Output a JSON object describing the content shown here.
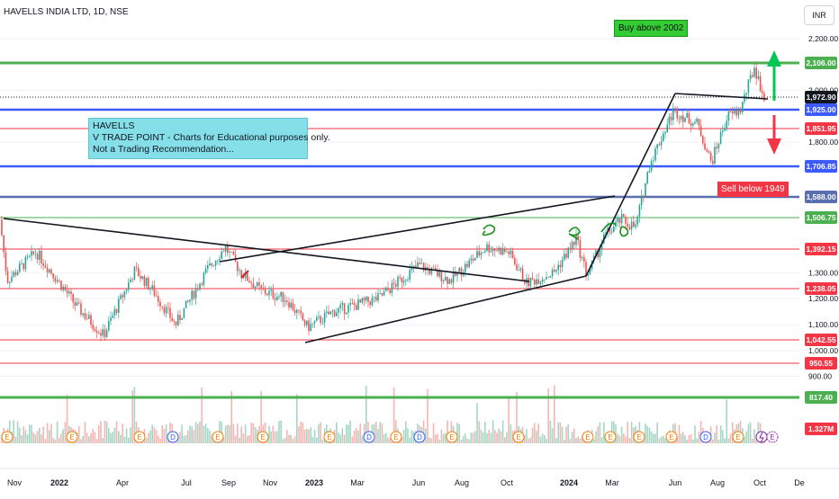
{
  "header": {
    "title": "HAVELLS INDIA LTD, 1D, NSE",
    "currency": "INR"
  },
  "annotations": {
    "note_lines": [
      "HAVELLS",
      "V TRADE POINT - Charts for Educational purposes only.",
      "Not a Trading Recommendation..."
    ],
    "buy_label": "Buy above 2002",
    "sell_label": "Sell below 1949"
  },
  "chart_data": {
    "type": "candlestick",
    "x_tick_labels": [
      "Nov",
      "2022",
      "Apr",
      "Jul",
      "Sep",
      "Nov",
      "2023",
      "Mar",
      "Jun",
      "Aug",
      "Oct",
      "2024",
      "Mar",
      "Jun",
      "Aug",
      "Oct",
      "De"
    ],
    "y_tick_labels": [
      "2,200.00",
      "2,000.00",
      "1,800.00",
      "1,300.00",
      "1,200.00",
      "1,100.00",
      "1,000.00",
      "900.00"
    ],
    "ylim": [
      800,
      2230
    ],
    "horizontal_levels": [
      {
        "value": 2106.0,
        "label": "2,106.00",
        "color": "#4caf50"
      },
      {
        "value": 1972.9,
        "label": "1,972.90",
        "color": "#131722"
      },
      {
        "value": 1925.0,
        "label": "1,925.00",
        "color": "#3d5afe"
      },
      {
        "value": 1851.95,
        "label": "1,851.95",
        "color": "#f23645"
      },
      {
        "value": 1706.85,
        "label": "1,706.85",
        "color": "#3d5afe"
      },
      {
        "value": 1588.0,
        "label": "1,588.00",
        "color": "#5b6fb0"
      },
      {
        "value": 1506.75,
        "label": "1,506.75",
        "color": "#4caf50"
      },
      {
        "value": 1392.15,
        "label": "1,392.15",
        "color": "#f23645"
      },
      {
        "value": 1238.05,
        "label": "1,238.05",
        "color": "#f23645"
      },
      {
        "value": 1042.55,
        "label": "1,042.55",
        "color": "#f23645"
      },
      {
        "value": 950.55,
        "label": "950.55",
        "color": "#f23645"
      },
      {
        "value": 817.4,
        "label": "817.40",
        "color": "#4caf50"
      }
    ],
    "volume_label": "1.327M",
    "event_markers": [
      "E",
      "E",
      "E",
      "D",
      "E",
      "E",
      "E",
      "D",
      "E",
      "D",
      "E",
      "E",
      "E",
      "E",
      "E",
      "E",
      "D",
      "E"
    ],
    "colors": {
      "up": "#26a69a",
      "down": "#ef5350",
      "volume_up": "#a5d6c6",
      "volume_down": "#f5b5b3"
    }
  }
}
